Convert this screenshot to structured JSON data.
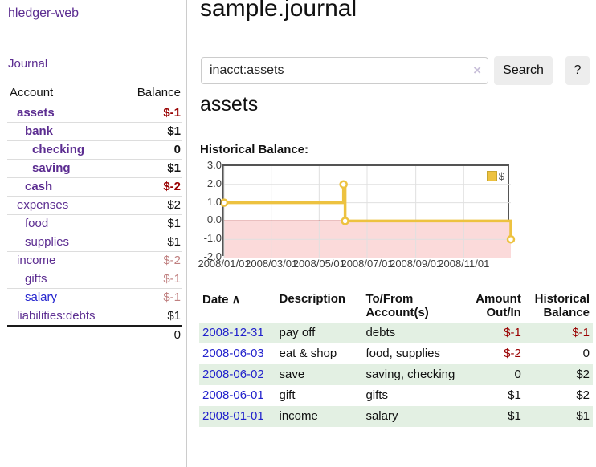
{
  "colors": {
    "purple_link": "#5c2d91",
    "blue_link": "#2222cc",
    "negative": "#990000",
    "negative_faded": "#c08080",
    "row_green": "#e3f0e3",
    "chart_line": "#edc240",
    "negative_region": "#fbdada",
    "zero_line": "#aa0000"
  },
  "sidebar": {
    "brand": "hledger-web",
    "journal_link": "Journal",
    "accounts": {
      "col_account": "Account",
      "col_balance": "Balance",
      "rows": [
        {
          "name": "assets",
          "balance": "$-1"
        },
        {
          "name": "bank",
          "balance": "$1"
        },
        {
          "name": "checking",
          "balance": "0"
        },
        {
          "name": "saving",
          "balance": "$1"
        },
        {
          "name": "cash",
          "balance": "$-2"
        },
        {
          "name": "expenses",
          "balance": "$2"
        },
        {
          "name": "food",
          "balance": "$1"
        },
        {
          "name": "supplies",
          "balance": "$1"
        },
        {
          "name": "income",
          "balance": "$-2"
        },
        {
          "name": "gifts",
          "balance": "$-1"
        },
        {
          "name": "salary",
          "balance": "$-1"
        },
        {
          "name": "liabilities:debts",
          "balance": "$1"
        }
      ],
      "total": "0"
    }
  },
  "main": {
    "title": "sample.journal",
    "search": {
      "value": "inacct:assets",
      "clear_icon": "×",
      "search_label": "Search",
      "help_label": "?"
    },
    "account_heading": "assets",
    "chart_label": "Historical Balance:"
  },
  "chart_data": {
    "type": "line",
    "step": true,
    "title": "Historical Balance",
    "series": [
      {
        "name": "$",
        "color": "#edc240",
        "points": [
          [
            "2008-01-01",
            1
          ],
          [
            "2008-06-01",
            2
          ],
          [
            "2008-06-03",
            0
          ],
          [
            "2008-12-31",
            -1
          ]
        ]
      }
    ],
    "x_range": [
      "2008-01-01",
      "2008-12-31"
    ],
    "xticks": [
      "2008/01/01",
      "2008/03/01",
      "2008/05/01",
      "2008/07/01",
      "2008/09/01",
      "2008/11/01"
    ],
    "yticks": [
      "3.0",
      "2.0",
      "1.0",
      "0.0",
      "-1.0",
      "-2.0"
    ],
    "ylim": [
      -2,
      3
    ],
    "grid": true,
    "negative_region_color": "#fbdada",
    "zero_line_color": "#aa0000",
    "legend": {
      "label": "$",
      "position": "top-right"
    }
  },
  "register": {
    "headers": {
      "date": "Date",
      "sort_icon": "∧",
      "description": "Description",
      "accounts": "To/From Account(s)",
      "amount": "Amount Out/In",
      "balance": "Historical Balance"
    },
    "rows": [
      {
        "date": "2008-12-31",
        "description": "pay off",
        "accounts": "debts",
        "amount": "$-1",
        "balance": "$-1"
      },
      {
        "date": "2008-06-03",
        "description": "eat & shop",
        "accounts": "food, supplies",
        "amount": "$-2",
        "balance": "0"
      },
      {
        "date": "2008-06-02",
        "description": "save",
        "accounts": "saving, checking",
        "amount": "0",
        "balance": "$2"
      },
      {
        "date": "2008-06-01",
        "description": "gift",
        "accounts": "gifts",
        "amount": "$1",
        "balance": "$2"
      },
      {
        "date": "2008-01-01",
        "description": "income",
        "accounts": "salary",
        "amount": "$1",
        "balance": "$1"
      }
    ]
  }
}
